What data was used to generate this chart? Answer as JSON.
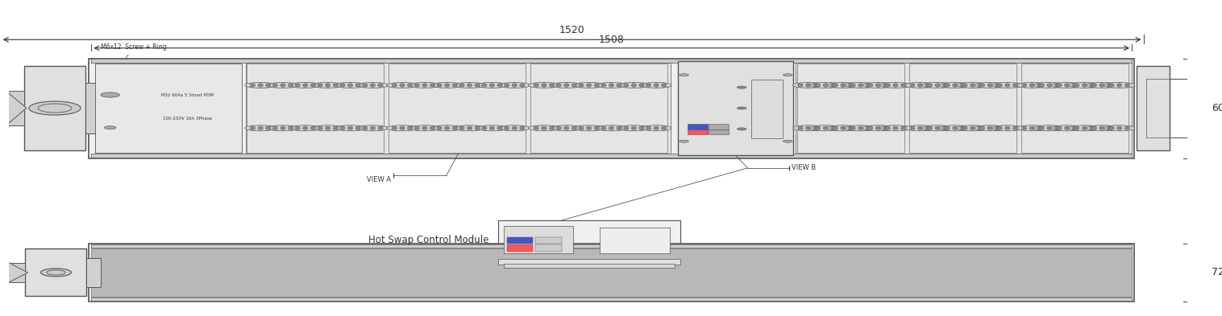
{
  "bg_color": "#ffffff",
  "line_color": "#555555",
  "dim_color": "#333333",
  "text_color": "#333333",
  "dim_1520": "1520",
  "dim_1508": "1508",
  "dim_60": "60",
  "dim_72": "72",
  "label_view_a": "VIEW A",
  "label_view_b": "VIEW B",
  "label_screw": "M6x12  Screw + Ring",
  "label_pdu": "PDU 60Ax 5 Smart PDM",
  "label_pdu2": "100-250V 16A 3Phase",
  "label_hotswap": "Hot Swap Control Module"
}
